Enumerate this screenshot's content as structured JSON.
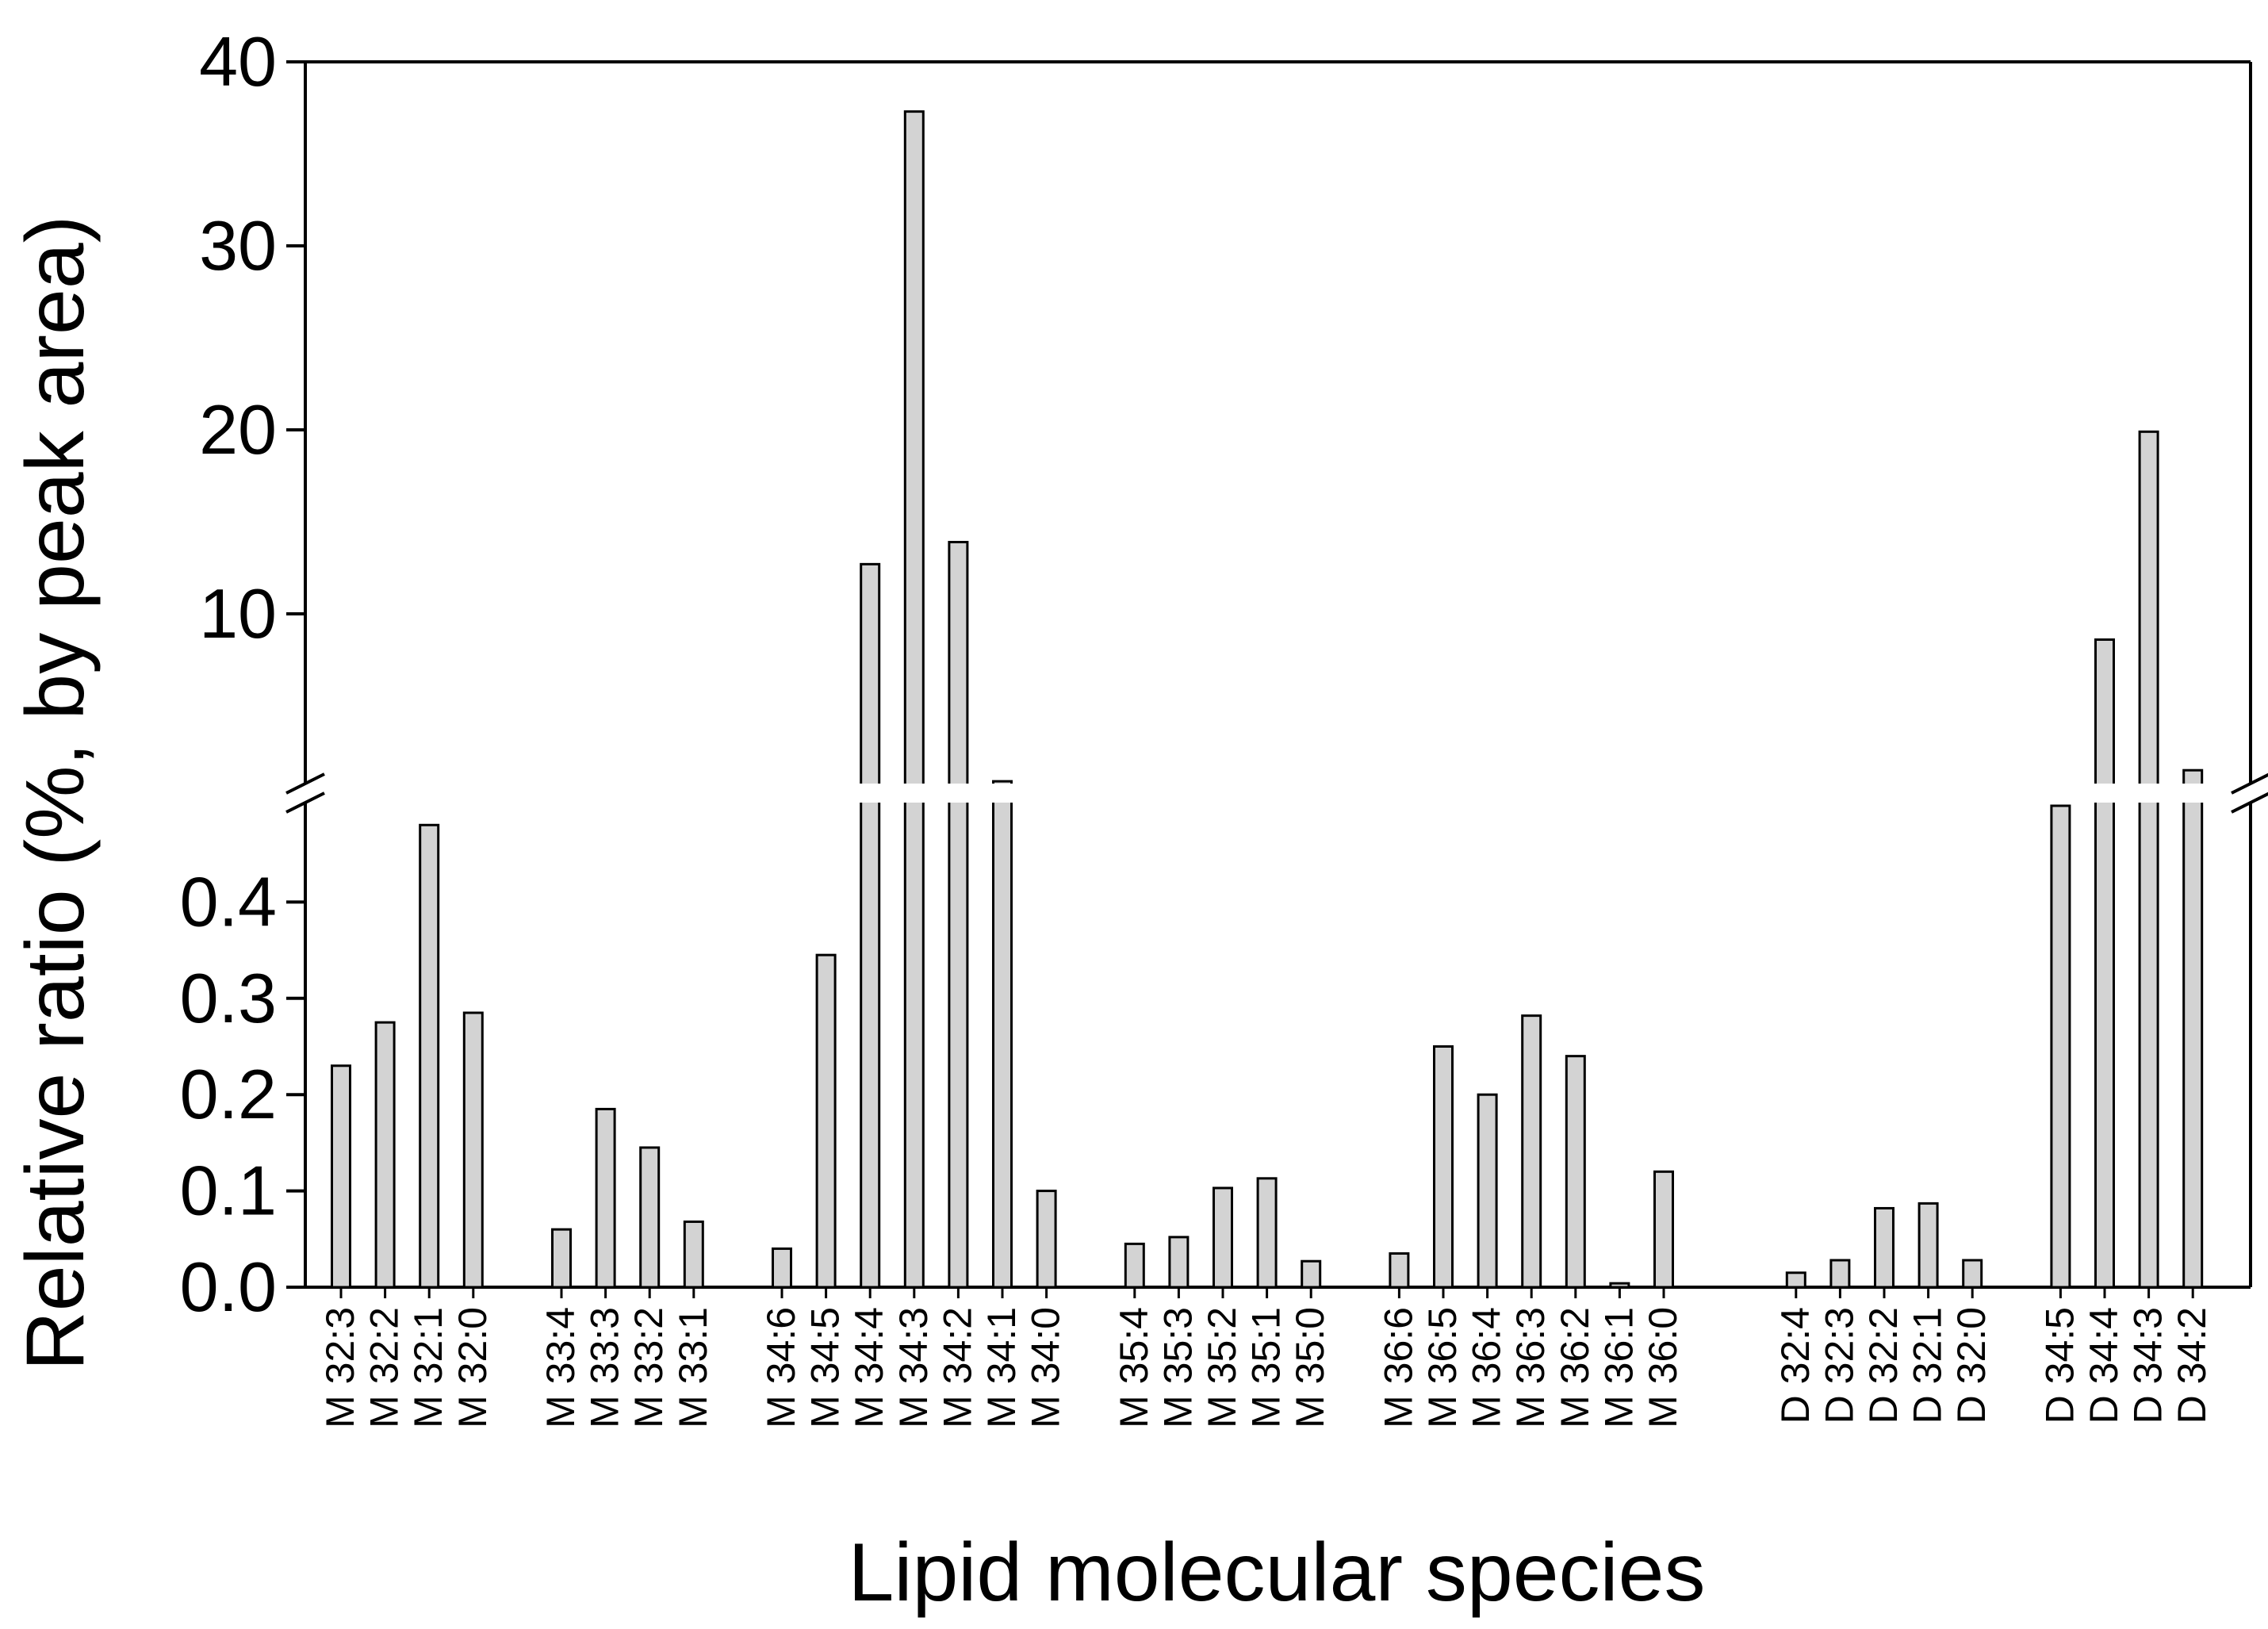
{
  "chart_data": {
    "type": "bar",
    "xlabel": "Lipid molecular species",
    "ylabel": "Relative ratio (%, by peak area)",
    "y_axis_break": true,
    "lower_segment": {
      "ylim": [
        0,
        0.5
      ],
      "ticks": [
        "0.0",
        "0.1",
        "0.2",
        "0.3",
        "0.4"
      ]
    },
    "upper_segment": {
      "ylim": [
        0,
        40
      ],
      "ticks": [
        "10",
        "20",
        "30",
        "40"
      ]
    },
    "bar_color": "#d3d3d3",
    "grid": false,
    "legend": "none",
    "groups": [
      {
        "categories": [
          "M 32:3",
          "M 32:2",
          "M 32:1",
          "M 32:0"
        ],
        "values": [
          0.23,
          0.275,
          0.48,
          0.285
        ]
      },
      {
        "categories": [
          "M 33:4",
          "M 33:3",
          "M 33:2",
          "M 33:1"
        ],
        "values": [
          0.06,
          0.185,
          0.145,
          0.068
        ]
      },
      {
        "categories": [
          "M 34:6",
          "M 34:5",
          "M 34:4",
          "M 34:3",
          "M 34:2",
          "M 34:1",
          "M 34:0"
        ],
        "values": [
          0.04,
          0.345,
          12.7,
          37.3,
          13.9,
          0.9,
          0.1
        ]
      },
      {
        "categories": [
          "M 35:4",
          "M 35:3",
          "M 35:2",
          "M 35:1",
          "M 35:0"
        ],
        "values": [
          0.045,
          0.052,
          0.103,
          0.113,
          0.027
        ]
      },
      {
        "categories": [
          "M 36:6",
          "M 36:5",
          "M 36:4",
          "M 36:3",
          "M 36:2",
          "M 36:1",
          "M 36:0"
        ],
        "values": [
          0.035,
          0.25,
          0.2,
          0.282,
          0.24,
          0.004,
          0.12
        ]
      },
      {
        "categories": [
          "D 32:4",
          "D 32:3",
          "D 32:2",
          "D 32:1",
          "D 32:0"
        ],
        "values": [
          0.015,
          0.028,
          0.082,
          0.087,
          0.028
        ]
      },
      {
        "categories": [
          "D 34:5",
          "D 34:4",
          "D 34:3",
          "D 34:2"
        ],
        "values": [
          0.5,
          8.6,
          19.9,
          1.5
        ]
      }
    ]
  }
}
